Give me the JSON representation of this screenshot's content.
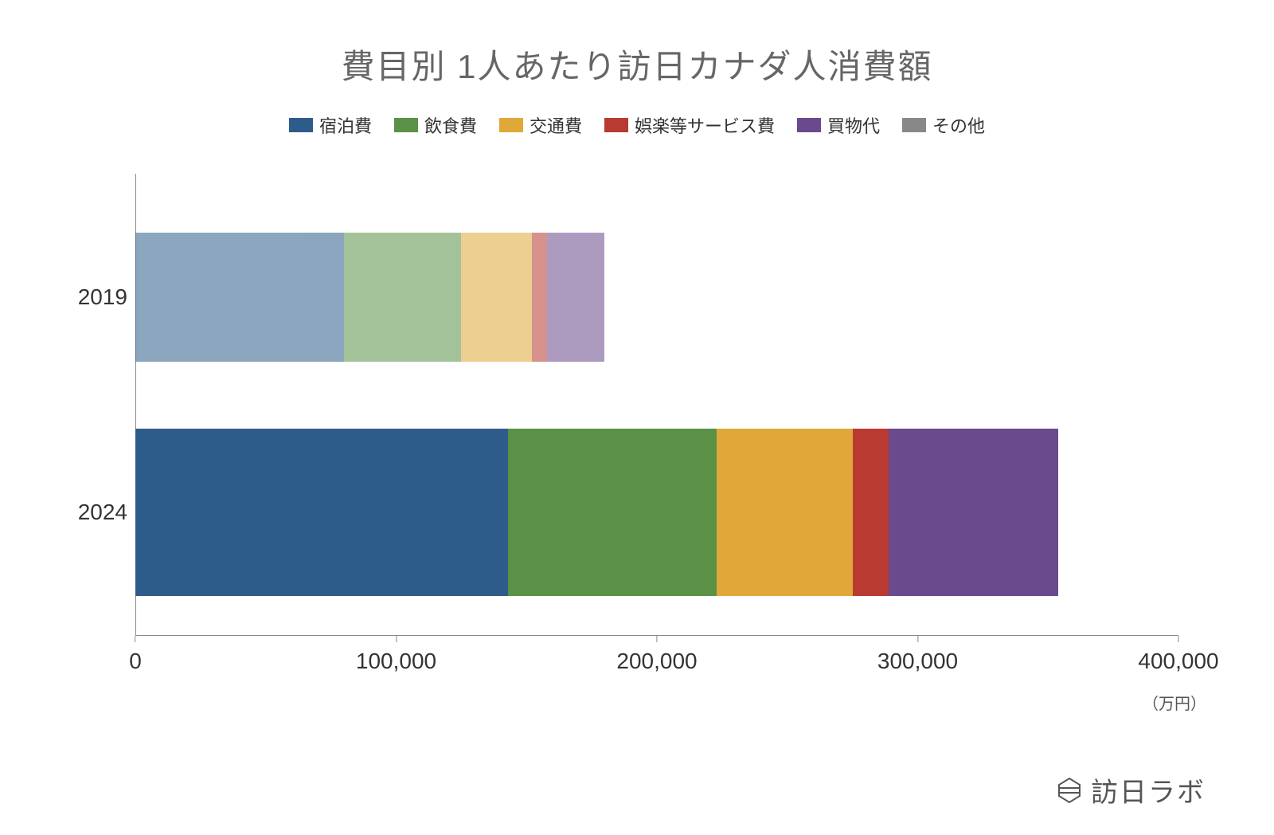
{
  "chart": {
    "type": "stacked-horizontal-bar",
    "title": "費目別 1人あたり訪日カナダ人消費額",
    "title_color": "#666666",
    "title_fontsize": 42,
    "background_color": "#ffffff",
    "x_axis": {
      "min": 0,
      "max": 400000,
      "ticks": [
        0,
        100000,
        200000,
        300000,
        400000
      ],
      "tick_labels": [
        "0",
        "100,000",
        "200,000",
        "300,000",
        "400,000"
      ],
      "unit_label": "（万円）",
      "label_fontsize": 28,
      "tick_color": "#888888"
    },
    "legend": {
      "position": "top",
      "fontsize": 22,
      "items": [
        {
          "label": "宿泊費",
          "color": "#2e5c8a"
        },
        {
          "label": "飲食費",
          "color": "#5a9146"
        },
        {
          "label": "交通費",
          "color": "#e0a838"
        },
        {
          "label": "娯楽等サービス費",
          "color": "#b83a30"
        },
        {
          "label": "買物代",
          "color": "#6a4a8c"
        },
        {
          "label": "その他",
          "color": "#888888"
        }
      ]
    },
    "categories": [
      {
        "label": "2019",
        "opacity": 0.55,
        "bar_height_ratio": 0.6,
        "values": [
          {
            "name": "宿泊費",
            "value": 80000,
            "color": "#2e5c8a"
          },
          {
            "name": "飲食費",
            "value": 45000,
            "color": "#5a9146"
          },
          {
            "name": "交通費",
            "value": 27000,
            "color": "#e0a838"
          },
          {
            "name": "娯楽等サービス費",
            "value": 6000,
            "color": "#b83a30"
          },
          {
            "name": "買物代",
            "value": 22000,
            "color": "#6a4a8c"
          },
          {
            "name": "その他",
            "value": 0,
            "color": "#888888"
          }
        ],
        "total": 180000
      },
      {
        "label": "2024",
        "opacity": 1.0,
        "bar_height_ratio": 0.78,
        "values": [
          {
            "name": "宿泊費",
            "value": 143000,
            "color": "#2e5c8a"
          },
          {
            "name": "飲食費",
            "value": 80000,
            "color": "#5a9146"
          },
          {
            "name": "交通費",
            "value": 52000,
            "color": "#e0a838"
          },
          {
            "name": "娯楽等サービス費",
            "value": 14000,
            "color": "#b83a30"
          },
          {
            "name": "買物代",
            "value": 65000,
            "color": "#6a4a8c"
          },
          {
            "name": "その他",
            "value": 0,
            "color": "#888888"
          }
        ],
        "total": 354000
      }
    ],
    "y_label_fontsize": 28,
    "axis_color": "#888888"
  },
  "watermark": {
    "text": "訪日ラボ",
    "icon_color": "#555555",
    "text_color": "#555555",
    "fontsize": 34
  }
}
